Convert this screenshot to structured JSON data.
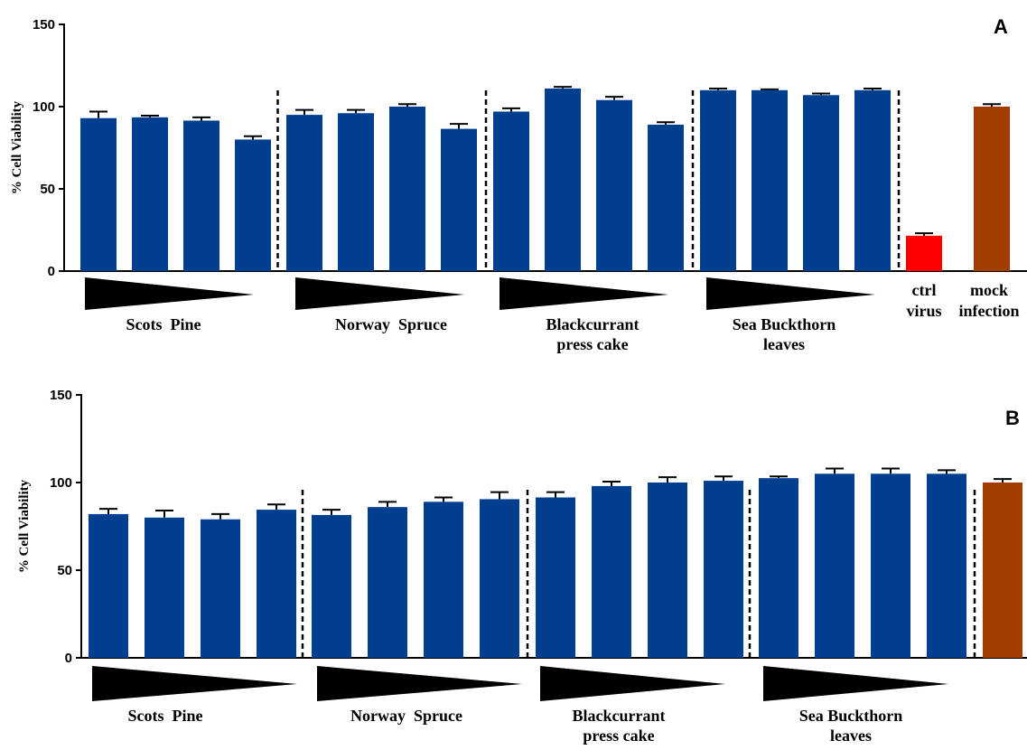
{
  "colors": {
    "treatment": "#003f8f",
    "ctrl_virus": "#ff0000",
    "mock_infection": "#a33c00",
    "axis": "#000000"
  },
  "chart_data": [
    {
      "type": "bar",
      "panel": "A",
      "ylabel": "% Cell Viability",
      "ylim": [
        0,
        150
      ],
      "yticks": [
        "0",
        "50",
        "100",
        "150"
      ],
      "groups": [
        {
          "label_lines": [
            "Scots  Pine"
          ],
          "values": [
            93,
            93.5,
            91.5,
            80
          ],
          "errors": [
            4,
            1,
            2,
            2
          ]
        },
        {
          "label_lines": [
            "Norway  Spruce"
          ],
          "values": [
            95,
            96,
            100,
            86.5
          ],
          "errors": [
            3,
            2,
            1.5,
            3
          ]
        },
        {
          "label_lines": [
            "Blackcurrant",
            "press cake"
          ],
          "values": [
            97,
            111,
            104,
            89
          ],
          "errors": [
            2,
            1,
            2,
            1.5
          ]
        },
        {
          "label_lines": [
            "Sea Buckthorn",
            "leaves"
          ],
          "values": [
            110,
            110,
            107,
            110
          ],
          "errors": [
            1,
            0.5,
            1,
            1
          ]
        }
      ],
      "controls": [
        {
          "label_lines": [
            "ctrl",
            "virus"
          ],
          "value": 21.5,
          "error": 1.5,
          "color_key": "ctrl_virus"
        },
        {
          "label_lines": [
            "mock",
            "infection"
          ],
          "value": 100,
          "error": 1.5,
          "color_key": "mock_infection"
        }
      ]
    },
    {
      "type": "bar",
      "panel": "B",
      "ylabel": "% Cell Viability",
      "ylim": [
        0,
        150
      ],
      "yticks": [
        "0",
        "50",
        "100",
        "150"
      ],
      "groups": [
        {
          "label_lines": [
            "Scots  Pine"
          ],
          "values": [
            82,
            80,
            79,
            84.5
          ],
          "errors": [
            3,
            4,
            3,
            3
          ]
        },
        {
          "label_lines": [
            "Norway  Spruce"
          ],
          "values": [
            81.5,
            86,
            89,
            90.5
          ],
          "errors": [
            3,
            3,
            2.5,
            4
          ]
        },
        {
          "label_lines": [
            "Blackcurrant",
            "press cake"
          ],
          "values": [
            91.5,
            98,
            100,
            101
          ],
          "errors": [
            3,
            2.5,
            3,
            2.5
          ]
        },
        {
          "label_lines": [
            "Sea Buckthorn",
            "leaves"
          ],
          "values": [
            102.5,
            105,
            105,
            105
          ],
          "errors": [
            1,
            3,
            3,
            2
          ]
        }
      ],
      "controls": [
        {
          "label_lines": [],
          "value": 100,
          "error": 2,
          "color_key": "mock_infection"
        }
      ]
    }
  ]
}
